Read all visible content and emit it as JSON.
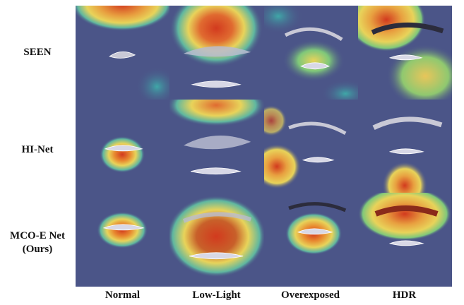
{
  "rows": [
    {
      "label": "SEEN"
    },
    {
      "label": "HI-Net"
    },
    {
      "label": "MCO-E Net",
      "label2": "(Ours)"
    }
  ],
  "columns": [
    "Normal",
    "Low-Light",
    "Overexposed",
    "HDR"
  ],
  "colors": {
    "cold": "#4b5588",
    "warm": "#d23a1e",
    "mid": "#e8d35a",
    "teal": "#3fa8a8"
  }
}
